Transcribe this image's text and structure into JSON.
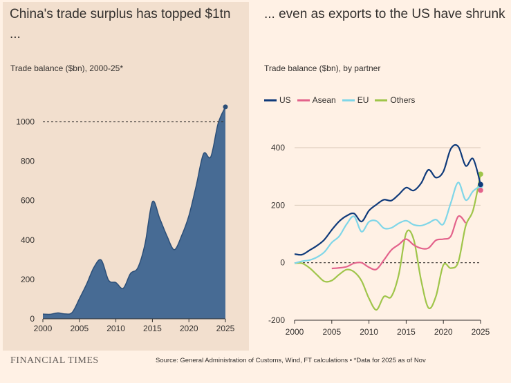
{
  "left": {
    "headline": "China's trade surplus has topped $1tn ...",
    "subtitle": "Trade balance ($bn), 2000-25*"
  },
  "right": {
    "headline": "... even as exports to the US have shrunk",
    "subtitle": "Trade balance ($bn), by partner"
  },
  "footer": {
    "logo": "FINANCIAL TIMES",
    "source": "Source: General Administration of Customs, Wind, FT calculations • *Data for 2025 as of Nov"
  },
  "colors": {
    "background": "#fff1e5",
    "panel": "#f2dfce",
    "area": "#476b94",
    "US": "#0f3a7a",
    "Asean": "#e3628b",
    "EU": "#7fd6e8",
    "Others": "#9fc54a",
    "grid": "#d8c8b8"
  },
  "chart_data": [
    {
      "type": "area",
      "title": "China's trade surplus has topped $1tn ...",
      "subtitle": "Trade balance ($bn), 2000-25*",
      "x": [
        2000,
        2001,
        2002,
        2003,
        2004,
        2005,
        2006,
        2007,
        2008,
        2009,
        2010,
        2011,
        2012,
        2013,
        2014,
        2015,
        2016,
        2017,
        2018,
        2019,
        2020,
        2021,
        2022,
        2023,
        2024,
        2025
      ],
      "series": [
        {
          "values": [
            24,
            23,
            30,
            25,
            32,
            102,
            177,
            262,
            298,
            196,
            184,
            155,
            230,
            259,
            382,
            594,
            510,
            420,
            351,
            422,
            524,
            676,
            838,
            823,
            992,
            1076
          ]
        }
      ],
      "xlim": [
        2000,
        2025
      ],
      "ylim": [
        0,
        1100
      ],
      "xticks": [
        2000,
        2005,
        2010,
        2015,
        2020,
        2025
      ],
      "yticks": [
        0,
        200,
        400,
        600,
        800,
        1000
      ],
      "reference_line": 1000,
      "grid": false
    },
    {
      "type": "line",
      "title": "... even as exports to the US have shrunk",
      "subtitle": "Trade balance ($bn), by partner",
      "x": [
        2000,
        2001,
        2002,
        2003,
        2004,
        2005,
        2006,
        2007,
        2008,
        2009,
        2010,
        2011,
        2012,
        2013,
        2014,
        2015,
        2016,
        2017,
        2018,
        2019,
        2020,
        2021,
        2022,
        2023,
        2024,
        2025
      ],
      "series": [
        {
          "name": "US",
          "values": [
            30,
            28,
            43,
            59,
            80,
            114,
            144,
            163,
            171,
            143,
            181,
            202,
            219,
            216,
            237,
            261,
            251,
            276,
            323,
            296,
            317,
            396,
            404,
            337,
            361,
            272
          ]
        },
        {
          "name": "Asean",
          "values": [
            null,
            null,
            null,
            null,
            null,
            -20,
            -18,
            -14,
            -2,
            0,
            -16,
            -23,
            9,
            44,
            63,
            82,
            62,
            50,
            51,
            78,
            82,
            92,
            161,
            138,
            null,
            252
          ]
        },
        {
          "name": "EU",
          "values": [
            -2,
            5,
            9,
            19,
            37,
            70,
            92,
            134,
            161,
            108,
            142,
            145,
            120,
            121,
            137,
            146,
            132,
            129,
            138,
            150,
            134,
            208,
            279,
            218,
            249,
            268
          ]
        },
        {
          "name": "Others",
          "values": [
            -2,
            -2,
            -18,
            -42,
            -65,
            -62,
            -41,
            -24,
            -32,
            -63,
            -124,
            -164,
            -118,
            -118,
            -42,
            103,
            82,
            -60,
            -157,
            -117,
            -8,
            -19,
            2,
            128,
            183,
            308
          ]
        }
      ],
      "xlim": [
        2000,
        2025
      ],
      "ylim": [
        -200,
        400
      ],
      "xticks": [
        2000,
        2005,
        2010,
        2015,
        2020,
        2025
      ],
      "yticks": [
        -200,
        0,
        200,
        400
      ],
      "reference_line": 0,
      "legend": "top-left",
      "grid": true
    }
  ]
}
